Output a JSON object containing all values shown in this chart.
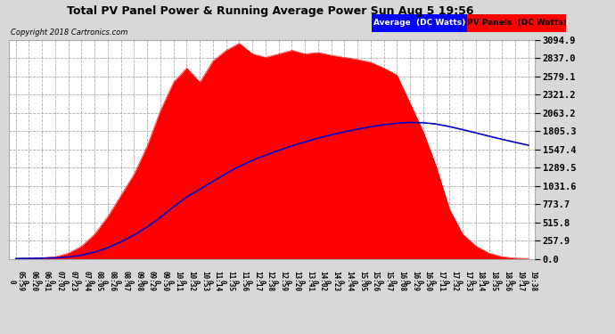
{
  "title": "Total PV Panel Power & Running Average Power Sun Aug 5 19:56",
  "copyright": "Copyright 2018 Cartronics.com",
  "legend_avg": "Average  (DC Watts)",
  "legend_pv": "PV Panels  (DC Watts)",
  "ytick_values": [
    0.0,
    257.9,
    515.8,
    773.7,
    1031.6,
    1289.5,
    1547.4,
    1805.3,
    2063.2,
    2321.2,
    2579.1,
    2837.0,
    3094.9
  ],
  "ylim": [
    0.0,
    3094.9
  ],
  "bg_color": "#ffffff",
  "plot_bg_color": "#ffffff",
  "fig_bg_color": "#d8d8d8",
  "title_color": "black",
  "grid_color": "#aaaaaa",
  "pv_color": "#ff0000",
  "avg_color": "#0000cc",
  "x_labels": [
    "05:59",
    "06:20",
    "06:41",
    "07:02",
    "07:23",
    "07:44",
    "08:05",
    "08:26",
    "08:47",
    "09:08",
    "09:29",
    "09:50",
    "10:11",
    "10:32",
    "10:53",
    "11:14",
    "11:35",
    "11:56",
    "12:17",
    "12:38",
    "12:59",
    "13:20",
    "13:41",
    "14:02",
    "14:23",
    "14:44",
    "15:05",
    "15:26",
    "15:47",
    "16:08",
    "16:29",
    "16:50",
    "17:11",
    "17:32",
    "17:53",
    "18:14",
    "18:35",
    "18:56",
    "19:17",
    "19:38"
  ],
  "x_bottom_labels": [
    "0",
    "0",
    "0",
    "0",
    "0",
    "0",
    "0",
    "0",
    "0",
    "0",
    "0",
    "0",
    "1",
    "1",
    "1",
    "1",
    "1",
    "1",
    "1",
    "1",
    "1",
    "1",
    "1",
    "1",
    "1",
    "1",
    "1",
    "1",
    "1",
    "1",
    "1",
    "1",
    "1",
    "1",
    "1",
    "1",
    "1",
    "1",
    "1",
    "1"
  ],
  "pv_data": [
    5,
    8,
    15,
    30,
    80,
    180,
    350,
    600,
    900,
    1200,
    1600,
    2100,
    2500,
    2700,
    2500,
    2800,
    2950,
    3050,
    2900,
    2850,
    2900,
    2950,
    2900,
    2920,
    2880,
    2850,
    2820,
    2780,
    2700,
    2600,
    2200,
    1800,
    1300,
    700,
    350,
    180,
    80,
    30,
    10,
    5
  ]
}
